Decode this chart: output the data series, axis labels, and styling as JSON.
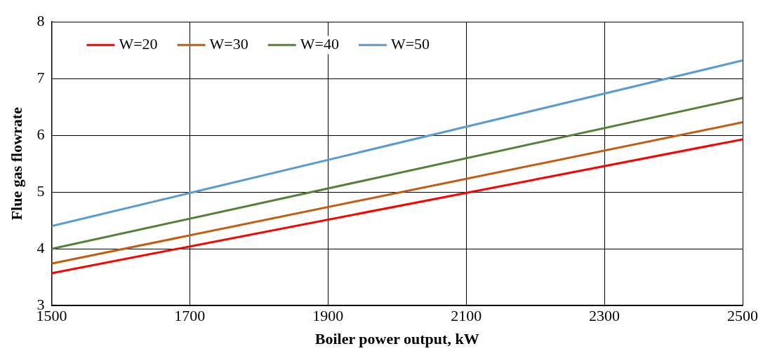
{
  "chart_data": {
    "type": "line",
    "xlabel": "Boiler power output, kW",
    "ylabel": "Flue gas flowrate",
    "x": [
      1500,
      2500
    ],
    "series": [
      {
        "name": "W=20",
        "color": "#ff0000",
        "values": [
          3.57,
          5.93
        ]
      },
      {
        "name": "W=30",
        "color": "#c55a11",
        "values": [
          3.74,
          6.23
        ]
      },
      {
        "name": "W=40",
        "color": "#538135",
        "values": [
          4.0,
          6.66
        ]
      },
      {
        "name": "W=50",
        "color": "#5b9bd5",
        "values": [
          4.4,
          7.32
        ]
      }
    ],
    "xlim": [
      1500,
      2500
    ],
    "xticks": [
      1500,
      1700,
      1900,
      2100,
      2300,
      2500
    ],
    "ylim": [
      3,
      8
    ],
    "yticks": [
      3,
      4,
      5,
      6,
      7,
      8
    ],
    "grid": true,
    "legend": "top left",
    "marker": "none",
    "line_style": "solid"
  }
}
